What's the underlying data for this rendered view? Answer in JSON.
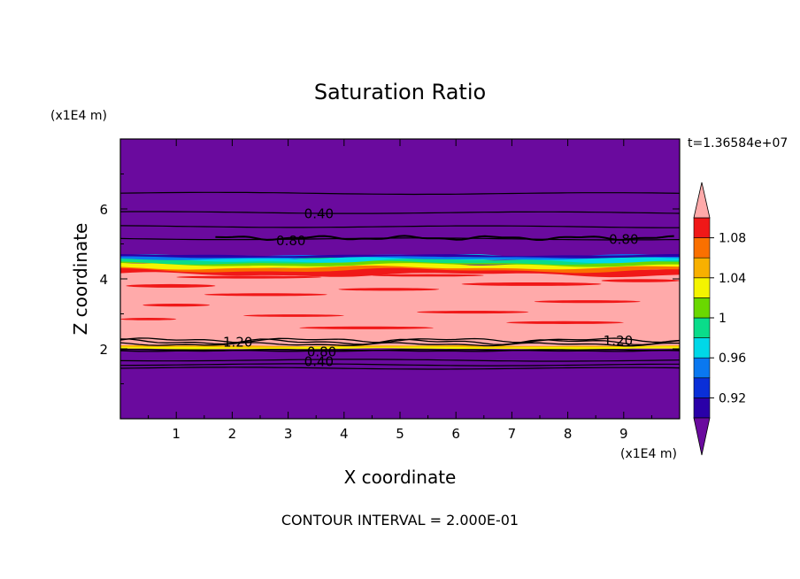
{
  "chart_data": {
    "type": "heatmap",
    "title": "Saturation Ratio",
    "xlabel": "X coordinate",
    "ylabel": "Z coordinate",
    "x_unit": "(x1E4 m)",
    "y_unit": "(x1E4 m)",
    "time_label": "t=1.36584e+07",
    "footer": "CONTOUR INTERVAL = 2.000E-01",
    "xlim": [
      0,
      10
    ],
    "ylim": [
      0,
      8
    ],
    "x_ticks": [
      1,
      2,
      3,
      4,
      5,
      6,
      7,
      8,
      9
    ],
    "x_tick_labels": [
      "1",
      "2",
      "3",
      "4",
      "5",
      "6",
      "7",
      "8",
      "9"
    ],
    "y_ticks": [
      2,
      4,
      6
    ],
    "y_tick_labels": [
      "2",
      "4",
      "6"
    ],
    "colorbar": {
      "levels": [
        0.9,
        0.92,
        0.94,
        0.96,
        0.98,
        1.0,
        1.02,
        1.04,
        1.06,
        1.08,
        1.1
      ],
      "tick_values": [
        0.92,
        0.96,
        1.0,
        1.04,
        1.08
      ],
      "tick_labels": [
        "0.92",
        "0.96",
        "1",
        "1.04",
        "1.08"
      ],
      "colors": [
        "#6a0a9e",
        "#2a00a8",
        "#0a2fd8",
        "#0a78f0",
        "#00d8e8",
        "#0adc8a",
        "#6ad800",
        "#f4f400",
        "#f8b000",
        "#fa7000",
        "#f01818",
        "#ffaaaa"
      ],
      "extend": "both"
    },
    "layers": [
      {
        "z": [
          0,
          1.98
        ],
        "class": "below 0.90"
      },
      {
        "z": [
          1.98,
          2.06
        ],
        "class": "1.04-1.08"
      },
      {
        "z": [
          2.06,
          2.55
        ],
        "class": "above 1.10"
      },
      {
        "z": [
          2.55,
          4.25
        ],
        "class": "above 1.10 with 1.08-1.10 streaks"
      },
      {
        "z": [
          4.25,
          4.45
        ],
        "class": "1.04-1.10"
      },
      {
        "z": [
          4.45,
          4.68
        ],
        "class": "0.90-1.02"
      },
      {
        "z": [
          4.68,
          8
        ],
        "class": "below 0.90"
      }
    ],
    "contours": [
      {
        "value": 0.4,
        "label": "0.40",
        "z": 5.9
      },
      {
        "value": 0.8,
        "label": "0.80",
        "z": 5.15
      },
      {
        "value": 0.8,
        "label": "0.80",
        "z": 5.18
      },
      {
        "value": 1.2,
        "label": "1.20",
        "z": 2.2
      },
      {
        "value": 1.2,
        "label": "1.20",
        "z": 2.25
      },
      {
        "value": 0.8,
        "label": "0.80",
        "z": 1.94
      },
      {
        "value": 0.4,
        "label": "0.40",
        "z": 1.68
      }
    ]
  }
}
